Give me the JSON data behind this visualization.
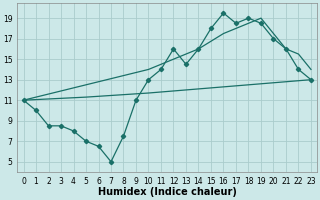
{
  "title": "",
  "xlabel": "Humidex (Indice chaleur)",
  "bg_color": "#cce8e8",
  "grid_color": "#aacccc",
  "line_color": "#1a7068",
  "xlim": [
    -0.5,
    23.5
  ],
  "ylim": [
    4.0,
    20.5
  ],
  "xticks": [
    0,
    1,
    2,
    3,
    4,
    5,
    6,
    7,
    8,
    9,
    10,
    11,
    12,
    13,
    14,
    15,
    16,
    17,
    18,
    19,
    20,
    21,
    22,
    23
  ],
  "yticks": [
    5,
    7,
    9,
    11,
    13,
    15,
    17,
    19
  ],
  "line_jagged_x": [
    0,
    1,
    2,
    3,
    4,
    5,
    6,
    7,
    8,
    9,
    10,
    11,
    12,
    13,
    14,
    15,
    16,
    17,
    18,
    19,
    20,
    21,
    22,
    23
  ],
  "line_jagged_y": [
    11,
    10,
    8.5,
    8.5,
    8.0,
    7.0,
    6.5,
    5.0,
    7.5,
    11,
    13,
    14,
    16,
    14.5,
    16,
    18,
    19.5,
    18.5,
    19,
    18.5,
    17,
    16,
    14,
    13
  ],
  "line_upper_x": [
    0,
    10,
    14,
    16,
    19,
    20,
    21,
    22,
    23
  ],
  "line_upper_y": [
    11,
    14,
    16,
    17.5,
    19,
    17.5,
    16,
    15.5,
    14
  ],
  "line_lower_x": [
    0,
    5,
    10,
    15,
    20,
    23
  ],
  "line_lower_y": [
    11,
    11.3,
    11.7,
    12.2,
    12.7,
    13.0
  ],
  "figsize": [
    3.2,
    2.0
  ],
  "dpi": 100,
  "xlabel_fontsize": 7,
  "tick_fontsize": 5.5
}
